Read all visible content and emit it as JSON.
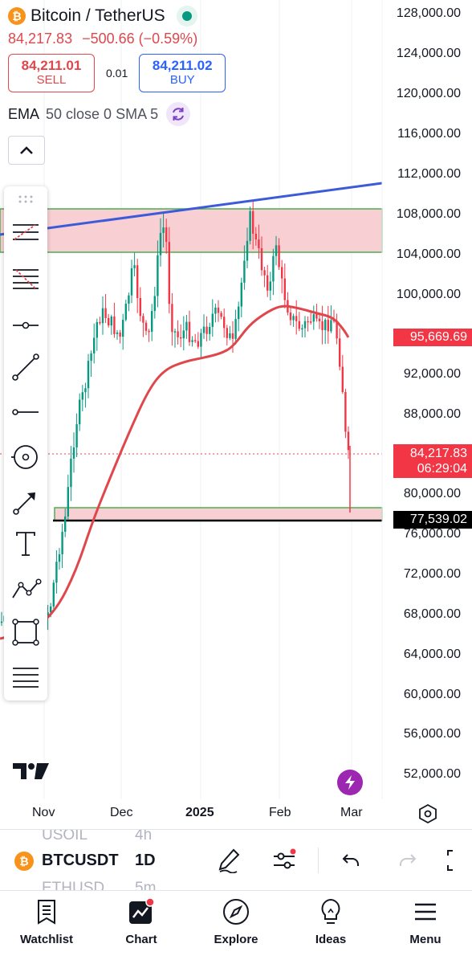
{
  "header": {
    "symbol_name": "Bitcoin / TetherUS",
    "last_price": "84,217.83",
    "change": "−500.66 (−0.59%)",
    "sell_price": "84,211.01",
    "sell_label": "SELL",
    "spread": "0.01",
    "buy_price": "84,211.02",
    "buy_label": "BUY",
    "indicator_name": "EMA",
    "indicator_params": "50 close 0 SMA 5"
  },
  "icons": {
    "logo": "bitcoin-icon",
    "status": "market-open-dot",
    "indicator_refresh": "refresh-icon",
    "collapse": "chevron-up-icon",
    "drawing_tools": [
      "drag-handle-icon",
      "pitchfork-icon",
      "fib-retracement-icon",
      "horizontal-ray-icon",
      "trend-line-icon",
      "horizontal-line-icon",
      "circle-icon",
      "arrow-icon",
      "text-icon",
      "path-icon",
      "rectangle-icon",
      "lines-icon"
    ]
  },
  "price_axis": {
    "labels": [
      "128,000.00",
      "124,000.00",
      "120,000.00",
      "116,000.00",
      "112,000.00",
      "108,000.00",
      "104,000.00",
      "100,000.00",
      "92,000.00",
      "88,000.00",
      "80,000.00",
      "76,000.00",
      "72,000.00",
      "68,000.00",
      "64,000.00",
      "60,000.00",
      "56,000.00",
      "52,000.00"
    ],
    "ema_tag": "95,669.69",
    "last_price_tag": "84,217.83",
    "countdown": "06:29:04",
    "line_tag": "77,539.02"
  },
  "time_axis": [
    "Nov",
    "Dec",
    "2025",
    "Feb",
    "Mar"
  ],
  "colors": {
    "up": "#089981",
    "down": "#f23645",
    "ema": "#e0474c",
    "trendline": "#3d5bd9",
    "zone_fill": "#f8c9cc",
    "zone_border": "#4caf50",
    "accent": "#2962ff",
    "flash": "#9c27b0"
  },
  "symbol_bar": {
    "symbol": "BTCUSDT",
    "interval": "1D",
    "ghost_prev_symbol": "USOIL",
    "ghost_prev_interval": "4h",
    "ghost_next_symbol": "ETHUSD",
    "ghost_next_interval": "5m"
  },
  "bottom_nav": [
    {
      "label": "Watchlist",
      "icon": "watchlist-icon"
    },
    {
      "label": "Chart",
      "icon": "chart-icon"
    },
    {
      "label": "Explore",
      "icon": "compass-icon"
    },
    {
      "label": "Ideas",
      "icon": "lightbulb-icon"
    },
    {
      "label": "Menu",
      "icon": "menu-icon"
    }
  ]
}
